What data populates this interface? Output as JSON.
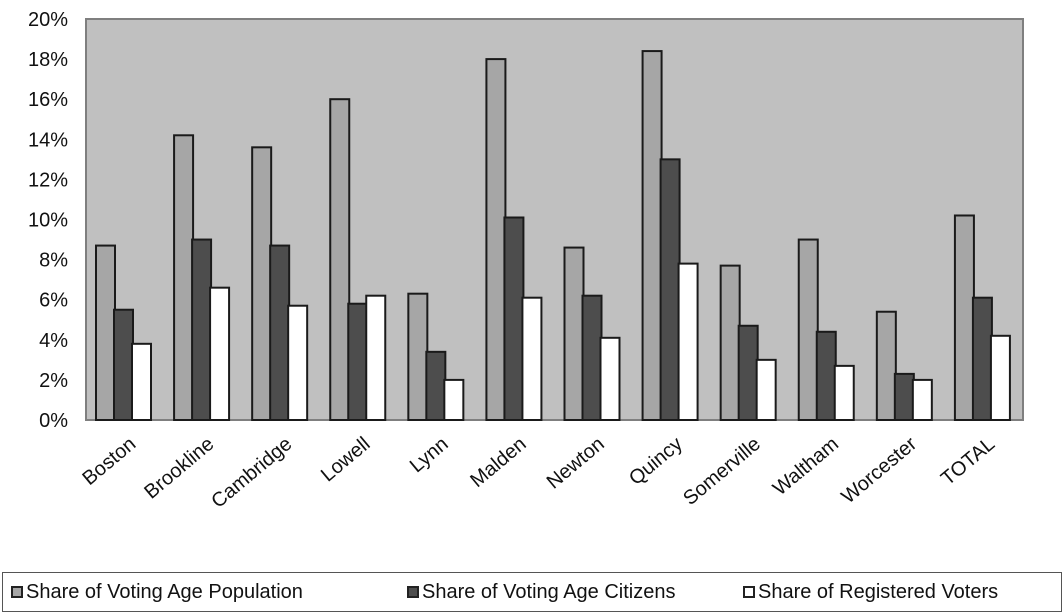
{
  "chart_data": {
    "type": "bar",
    "title": "",
    "xlabel": "",
    "ylabel": "",
    "ylim": [
      0,
      0.2
    ],
    "yticks": [
      "0%",
      "2%",
      "4%",
      "6%",
      "8%",
      "10%",
      "12%",
      "14%",
      "16%",
      "18%",
      "20%"
    ],
    "grid": false,
    "legend_position": "bottom",
    "plot_background": "#c0c0c0",
    "categories": [
      "Boston",
      "Brookline",
      "Cambridge",
      "Lowell",
      "Lynn",
      "Malden",
      "Newton",
      "Quincy",
      "Somerville",
      "Waltham",
      "Worcester",
      "TOTAL"
    ],
    "series": [
      {
        "name": "Share of Voting Age Population",
        "color": "#a6a6a6",
        "values": [
          0.087,
          0.142,
          0.136,
          0.16,
          0.063,
          0.18,
          0.086,
          0.184,
          0.077,
          0.09,
          0.054,
          0.102
        ]
      },
      {
        "name": "Share of Voting Age Citizens",
        "color": "#4d4d4d",
        "values": [
          0.055,
          0.09,
          0.087,
          0.058,
          0.034,
          0.101,
          0.062,
          0.13,
          0.047,
          0.044,
          0.023,
          0.061
        ]
      },
      {
        "name": "Share of Registered Voters",
        "color": "#ffffff",
        "values": [
          0.038,
          0.066,
          0.057,
          0.062,
          0.02,
          0.061,
          0.041,
          0.078,
          0.03,
          0.027,
          0.02,
          0.042
        ]
      }
    ]
  }
}
